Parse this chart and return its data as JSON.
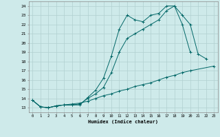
{
  "title": "",
  "xlabel": "Humidex (Indice chaleur)",
  "bg_color": "#ceeaea",
  "grid_color": "#b0d0d0",
  "line_color": "#006666",
  "xlim": [
    -0.5,
    23.5
  ],
  "ylim": [
    12.5,
    24.5
  ],
  "xticks": [
    0,
    1,
    2,
    3,
    4,
    5,
    6,
    7,
    8,
    9,
    10,
    11,
    12,
    13,
    14,
    15,
    16,
    17,
    18,
    19,
    20,
    21,
    22,
    23
  ],
  "yticks": [
    13,
    14,
    15,
    16,
    17,
    18,
    19,
    20,
    21,
    22,
    23,
    24
  ],
  "line1_x": [
    0,
    1,
    2,
    3,
    4,
    5,
    6,
    7,
    8,
    9,
    10,
    11,
    12,
    13,
    14,
    15,
    16,
    17,
    18,
    19,
    20,
    21,
    22
  ],
  "line1_y": [
    13.8,
    13.1,
    13.0,
    13.2,
    13.3,
    13.3,
    13.3,
    14.1,
    14.9,
    16.2,
    18.6,
    21.5,
    23.0,
    22.5,
    22.3,
    23.0,
    23.2,
    24.0,
    24.0,
    23.0,
    22.0,
    18.8,
    18.3
  ],
  "line2_x": [
    0,
    1,
    2,
    3,
    4,
    5,
    6,
    7,
    8,
    9,
    10,
    11,
    12,
    13,
    14,
    15,
    16,
    17,
    18,
    19,
    20
  ],
  "line2_y": [
    13.8,
    13.1,
    13.0,
    13.2,
    13.3,
    13.3,
    13.4,
    14.0,
    14.5,
    15.2,
    16.8,
    19.0,
    20.5,
    21.0,
    21.5,
    22.0,
    22.5,
    23.5,
    24.0,
    22.0,
    19.0
  ],
  "line3_x": [
    0,
    1,
    2,
    3,
    4,
    5,
    6,
    7,
    8,
    9,
    10,
    11,
    12,
    13,
    14,
    15,
    16,
    17,
    18,
    19,
    20,
    23
  ],
  "line3_y": [
    13.8,
    13.1,
    13.0,
    13.2,
    13.3,
    13.4,
    13.5,
    13.7,
    14.0,
    14.3,
    14.5,
    14.8,
    15.0,
    15.3,
    15.5,
    15.7,
    16.0,
    16.3,
    16.5,
    16.8,
    17.0,
    17.5
  ]
}
